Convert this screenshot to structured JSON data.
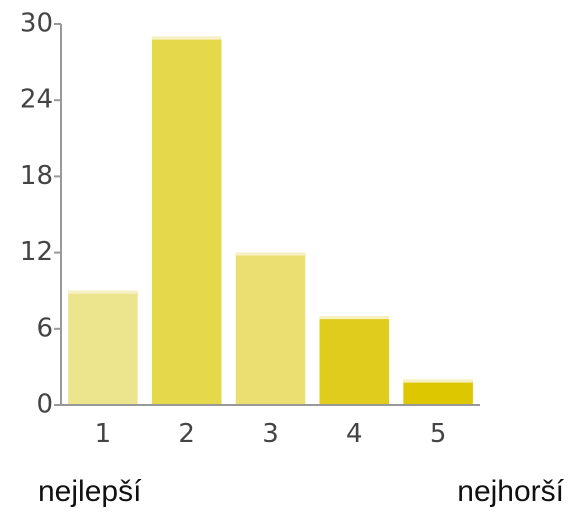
{
  "chart_data": {
    "type": "bar",
    "categories": [
      "1",
      "2",
      "3",
      "4",
      "5"
    ],
    "values": [
      9,
      29,
      12,
      7,
      2
    ],
    "colors": [
      "#ede48e",
      "#e5d84a",
      "#ebdf72",
      "#e0cc1c",
      "#dcc700"
    ],
    "ylim": [
      0,
      30
    ],
    "yticks": [
      "0",
      "6",
      "12",
      "18",
      "24",
      "30"
    ],
    "grid": false,
    "legend": "none",
    "axis_color": "#999999"
  },
  "scale_labels": {
    "best": "nejlepší",
    "worst": "nejhorší"
  }
}
